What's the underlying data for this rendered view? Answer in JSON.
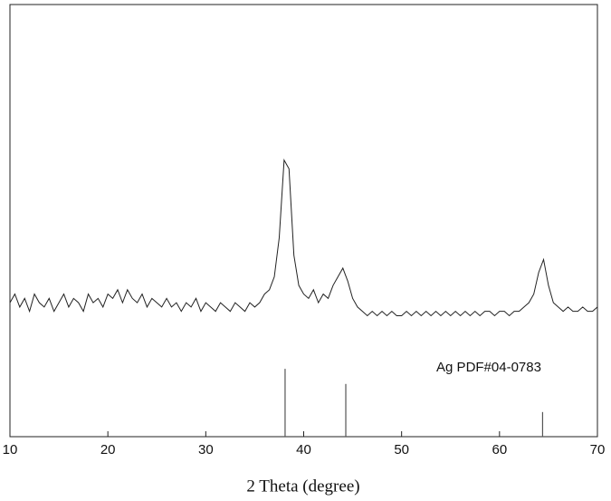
{
  "chart_data": {
    "type": "line",
    "xlabel": "2 Theta (degree)",
    "xlim": [
      10,
      70
    ],
    "xticks": [
      10,
      20,
      30,
      40,
      50,
      60,
      70
    ],
    "ylim": [
      0,
      100
    ],
    "series": [
      {
        "color": "#222222",
        "x": [
          10,
          10.5,
          11,
          11.5,
          12,
          12.5,
          13,
          13.5,
          14,
          14.5,
          15,
          15.5,
          16,
          16.5,
          17,
          17.5,
          18,
          18.5,
          19,
          19.5,
          20,
          20.5,
          21,
          21.5,
          22,
          22.5,
          23,
          23.5,
          24,
          24.5,
          25,
          25.5,
          26,
          26.5,
          27,
          27.5,
          28,
          28.5,
          29,
          29.5,
          30,
          30.5,
          31,
          31.5,
          32,
          32.5,
          33,
          33.5,
          34,
          34.5,
          35,
          35.5,
          36,
          36.5,
          37,
          37.5,
          38,
          38.5,
          39,
          39.5,
          40,
          40.5,
          41,
          41.5,
          42,
          42.5,
          43,
          43.5,
          44,
          44.5,
          45,
          45.5,
          46,
          46.5,
          47,
          47.5,
          48,
          48.5,
          49,
          49.5,
          50,
          50.5,
          51,
          51.5,
          52,
          52.5,
          53,
          53.5,
          54,
          54.5,
          55,
          55.5,
          56,
          56.5,
          57,
          57.5,
          58,
          58.5,
          59,
          59.5,
          60,
          60.5,
          61,
          61.5,
          62,
          62.5,
          63,
          63.5,
          64,
          64.5,
          65,
          65.5,
          66,
          66.5,
          67,
          67.5,
          68,
          68.5,
          69,
          69.5,
          70
        ],
        "values": [
          31,
          33,
          30,
          32,
          29,
          33,
          31,
          30,
          32,
          29,
          31,
          33,
          30,
          32,
          31,
          29,
          33,
          31,
          32,
          30,
          33,
          32,
          34,
          31,
          34,
          32,
          31,
          33,
          30,
          32,
          31,
          30,
          32,
          30,
          31,
          29,
          31,
          30,
          32,
          29,
          31,
          30,
          29,
          31,
          30,
          29,
          31,
          30,
          29,
          31,
          30,
          31,
          33,
          34,
          37,
          46,
          64,
          62,
          42,
          35,
          33,
          32,
          34,
          31,
          33,
          32,
          35,
          37,
          39,
          36,
          32,
          30,
          29,
          28,
          29,
          28,
          29,
          28,
          29,
          28,
          28,
          29,
          28,
          29,
          28,
          29,
          28,
          29,
          28,
          29,
          28,
          29,
          28,
          29,
          28,
          29,
          28,
          29,
          29,
          28,
          29,
          29,
          28,
          29,
          29,
          30,
          31,
          33,
          38,
          41,
          35,
          31,
          30,
          29,
          30,
          29,
          29,
          30,
          29,
          29,
          30
        ]
      }
    ],
    "reference": {
      "type": "stick",
      "name": "Ag PDF#04-0783",
      "color": "#555555",
      "x": [
        38.1,
        44.3,
        64.4
      ],
      "values": [
        15.7,
        12.2,
        5.7
      ]
    }
  }
}
